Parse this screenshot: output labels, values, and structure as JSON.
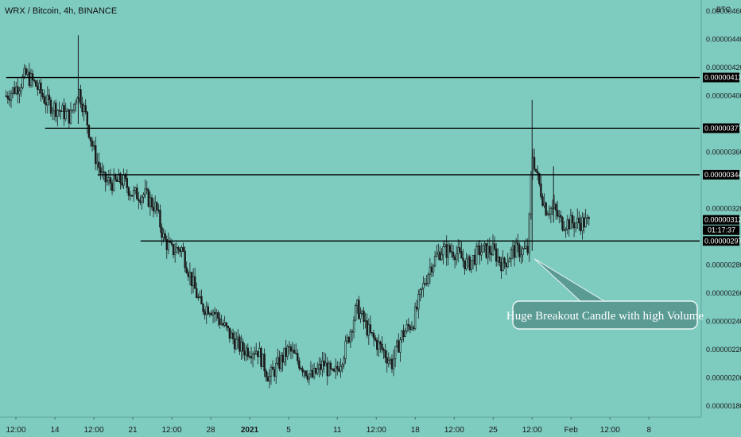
{
  "chart_data": {
    "type": "candlestick",
    "title": "WRX / Bitcoin, 4h, BINANCE",
    "currency_label": "BTC",
    "ylim": [
      1.72e-06,
      4.68e-06
    ],
    "y_ticks": [
      {
        "value": 1.8e-06,
        "label": "0.00000180"
      },
      {
        "value": 2e-06,
        "label": "0.00000200"
      },
      {
        "value": 2.2e-06,
        "label": "0.00000220"
      },
      {
        "value": 2.4e-06,
        "label": "0.00000240"
      },
      {
        "value": 2.6e-06,
        "label": "0.00000260"
      },
      {
        "value": 2.8e-06,
        "label": "0.00000280"
      },
      {
        "value": 3.2e-06,
        "label": "0.00000320"
      },
      {
        "value": 3.6e-06,
        "label": "0.00000360"
      },
      {
        "value": 4e-06,
        "label": "0.00000400"
      },
      {
        "value": 4.2e-06,
        "label": "0.00000420"
      },
      {
        "value": 4.4e-06,
        "label": "0.00000440"
      },
      {
        "value": 4.6e-06,
        "label": "0.00000460"
      }
    ],
    "x_ticks": [
      {
        "x": 0,
        "label": "12:00"
      },
      {
        "x": 2,
        "label": "14"
      },
      {
        "x": 4,
        "label": "12:00"
      },
      {
        "x": 6,
        "label": "21"
      },
      {
        "x": 8,
        "label": "12:00"
      },
      {
        "x": 10,
        "label": "28"
      },
      {
        "x": 12,
        "label": "2021",
        "bold": true
      },
      {
        "x": 14,
        "label": "5"
      },
      {
        "x": 16.5,
        "label": "11"
      },
      {
        "x": 18.5,
        "label": "12:00"
      },
      {
        "x": 20.5,
        "label": "18"
      },
      {
        "x": 22.5,
        "label": "12:00"
      },
      {
        "x": 24.5,
        "label": "25"
      },
      {
        "x": 26.5,
        "label": "12:00"
      },
      {
        "x": 28.5,
        "label": "Feb"
      },
      {
        "x": 30.5,
        "label": "12:00"
      },
      {
        "x": 32.5,
        "label": "8"
      }
    ],
    "horizontal_levels": [
      {
        "value": 4.13e-06,
        "label": "0.00000413",
        "x_start": -0.5
      },
      {
        "value": 3.77e-06,
        "label": "0.00000377",
        "x_start": 1.5
      },
      {
        "value": 3.44e-06,
        "label": "0.00000344",
        "x_start": 4.2
      },
      {
        "value": 2.97e-06,
        "label": "0.00000297",
        "x_start": 6.4
      }
    ],
    "current_price": {
      "value": 3.12e-06,
      "label": "0.00000312",
      "countdown": "01:17:37"
    },
    "annotation": {
      "text": "Huge Breakout Candle with high Volume",
      "target_x": 26.5,
      "target_y": 2.9e-06
    },
    "price_path": [
      [
        -0.5,
        4e-06
      ],
      [
        0.2,
        4.08e-06
      ],
      [
        0.5,
        4.15e-06
      ],
      [
        1.0,
        4.08e-06
      ],
      [
        1.6,
        3.95e-06
      ],
      [
        2.2,
        3.9e-06
      ],
      [
        2.8,
        3.85e-06
      ],
      [
        3.2,
        4.05e-06
      ],
      [
        3.6,
        3.85e-06
      ],
      [
        4.0,
        3.6e-06
      ],
      [
        4.5,
        3.4e-06
      ],
      [
        5.0,
        3.38e-06
      ],
      [
        5.5,
        3.4e-06
      ],
      [
        6.0,
        3.3e-06
      ],
      [
        6.6,
        3.3e-06
      ],
      [
        7.2,
        3.2e-06
      ],
      [
        7.6,
        2.98e-06
      ],
      [
        8.0,
        2.9e-06
      ],
      [
        8.5,
        2.92e-06
      ],
      [
        9.0,
        2.7e-06
      ],
      [
        9.5,
        2.5e-06
      ],
      [
        10.0,
        2.5e-06
      ],
      [
        10.5,
        2.4e-06
      ],
      [
        11.0,
        2.3e-06
      ],
      [
        11.6,
        2.2e-06
      ],
      [
        12.4,
        2.2e-06
      ],
      [
        13.0,
        2e-06
      ],
      [
        13.5,
        2.1e-06
      ],
      [
        14.0,
        2.2e-06
      ],
      [
        14.6,
        2.1e-06
      ],
      [
        15.2,
        2e-06
      ],
      [
        15.8,
        2.1e-06
      ],
      [
        16.3,
        2e-06
      ],
      [
        16.9,
        2.2e-06
      ],
      [
        17.5,
        2.5e-06
      ],
      [
        18.2,
        2.3e-06
      ],
      [
        18.8,
        2.2e-06
      ],
      [
        19.3,
        2.1e-06
      ],
      [
        19.8,
        2.3e-06
      ],
      [
        20.4,
        2.4e-06
      ],
      [
        20.8,
        2.6e-06
      ],
      [
        21.3,
        2.8e-06
      ],
      [
        21.8,
        2.9e-06
      ],
      [
        22.5,
        2.9e-06
      ],
      [
        23.2,
        2.8e-06
      ],
      [
        23.8,
        2.9e-06
      ],
      [
        24.5,
        2.9e-06
      ],
      [
        25.0,
        2.8e-06
      ],
      [
        25.5,
        2.9e-06
      ],
      [
        26.0,
        2.9e-06
      ],
      [
        26.3,
        2.9e-06
      ],
      [
        26.5,
        3.6e-06
      ],
      [
        26.8,
        3.4e-06
      ],
      [
        27.2,
        3.2e-06
      ],
      [
        27.6,
        3.2e-06
      ],
      [
        28.0,
        3.1e-06
      ],
      [
        28.5,
        3.1e-06
      ],
      [
        28.9,
        3.1e-06
      ],
      [
        29.3,
        3.1e-06
      ],
      [
        29.5,
        3.1e-06
      ]
    ],
    "wick_spikes": [
      {
        "x": 3.2,
        "high": 4.43e-06,
        "low": 3.8e-06
      },
      {
        "x": 26.5,
        "high": 3.97e-06,
        "low": 2.9e-06
      },
      {
        "x": 27.6,
        "high": 3.5e-06,
        "low": 3.1e-06
      }
    ]
  }
}
